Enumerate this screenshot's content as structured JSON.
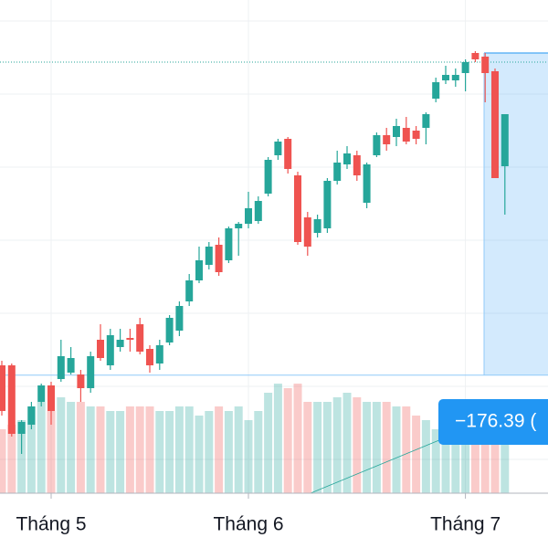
{
  "chart_data": {
    "type": "candlestick",
    "categories": [
      null,
      null,
      null,
      null,
      null,
      "Tháng 5",
      null,
      null,
      null,
      null,
      null,
      null,
      null,
      null,
      null,
      null,
      null,
      null,
      null,
      null,
      null,
      null,
      null,
      null,
      null,
      "Tháng 6",
      null,
      null,
      null,
      null,
      null,
      null,
      null,
      null,
      null,
      null,
      null,
      null,
      null,
      null,
      null,
      null,
      null,
      null,
      null,
      null,
      null,
      "Tháng 7",
      null,
      null,
      null,
      null
    ],
    "open": [
      1129,
      1129,
      1091.5,
      1096.5,
      1109,
      1118,
      1121.5,
      1125,
      1124,
      1116.5,
      1143,
      1129,
      1139,
      1144,
      1151.5,
      1138,
      1130,
      1141.5,
      1148,
      1164,
      1175.5,
      1184,
      1195,
      1186.5,
      1204,
      1206.5,
      1208,
      1223,
      1244,
      1253,
      1233,
      1210,
      1201.5,
      1204,
      1230,
      1239,
      1244,
      1218,
      1244,
      1255,
      1254,
      1259,
      1257.5,
      1259,
      1275,
      1285,
      1285,
      1289,
      1300,
      1298,
      1290,
      1238
    ],
    "high": [
      1131.5,
      1130,
      1099,
      1109,
      1119,
      1120,
      1143,
      1139,
      1126.5,
      1136.5,
      1151.5,
      1149,
      1149,
      1149,
      1155,
      1140,
      1143,
      1156.5,
      1164,
      1179,
      1194,
      1196.5,
      1199,
      1205,
      1207.5,
      1224,
      1221.5,
      1243,
      1253,
      1254,
      1235,
      1213,
      1211.5,
      1231.5,
      1246.5,
      1249,
      1246.5,
      1240,
      1256.5,
      1259,
      1264,
      1265,
      1260,
      1267.5,
      1286.5,
      1293,
      1291.5,
      1296.5,
      1301,
      1300,
      1291.5,
      1266.5
    ],
    "low": [
      1101.5,
      1090,
      1080.5,
      1094,
      1106.5,
      1096.5,
      1120,
      1124,
      1109,
      1114,
      1131.5,
      1126.5,
      1136.5,
      1136.5,
      1135,
      1125,
      1126.5,
      1140,
      1145,
      1161.5,
      1174,
      1181.5,
      1178,
      1185,
      1189,
      1204,
      1206.5,
      1221.5,
      1241.5,
      1234,
      1195,
      1189,
      1199,
      1201.5,
      1228,
      1236.5,
      1230,
      1215,
      1243,
      1246.5,
      1249,
      1250,
      1250,
      1250,
      1273,
      1283,
      1281.5,
      1279,
      1295,
      1273,
      1231.5,
      1211.5
    ],
    "close": [
      1104,
      1091.5,
      1098,
      1106.5,
      1118,
      1104,
      1134,
      1133,
      1116.5,
      1134,
      1133,
      1145.5,
      1143,
      1143,
      1136.5,
      1129,
      1140,
      1155,
      1161.5,
      1175.5,
      1186.5,
      1194,
      1180,
      1204,
      1206.5,
      1215,
      1219,
      1241.5,
      1251.5,
      1236.5,
      1196.5,
      1194,
      1209,
      1230,
      1240,
      1245,
      1233,
      1239,
      1255,
      1250,
      1260,
      1251.5,
      1253,
      1266.5,
      1284,
      1288,
      1288,
      1295,
      1296.5,
      1289,
      1231.5,
      1266.5
    ],
    "volume": [
      70,
      75,
      80,
      95,
      100,
      90,
      105,
      100,
      100,
      95,
      95,
      90,
      90,
      95,
      95,
      95,
      90,
      90,
      95,
      95,
      85,
      90,
      95,
      90,
      95,
      80,
      90,
      110,
      120,
      115,
      120,
      100,
      100,
      100,
      105,
      110,
      105,
      100,
      100,
      100,
      95,
      95,
      85,
      80,
      70,
      60,
      55,
      60,
      60,
      95,
      100,
      100
    ],
    "volume_ylim": [
      0,
      150
    ],
    "ylim": [
      1059,
      1329
    ],
    "ygrid": [
      1317.5,
      1277.5,
      1237.5,
      1197.5,
      1157.5,
      1117.5,
      1077.5
    ],
    "up_color": "#26a69a",
    "down_color": "#ef5350",
    "price_line": 1295,
    "range_box": {
      "top": 1300,
      "bottom": 1123.61,
      "label": "−176.39 ("
    }
  }
}
